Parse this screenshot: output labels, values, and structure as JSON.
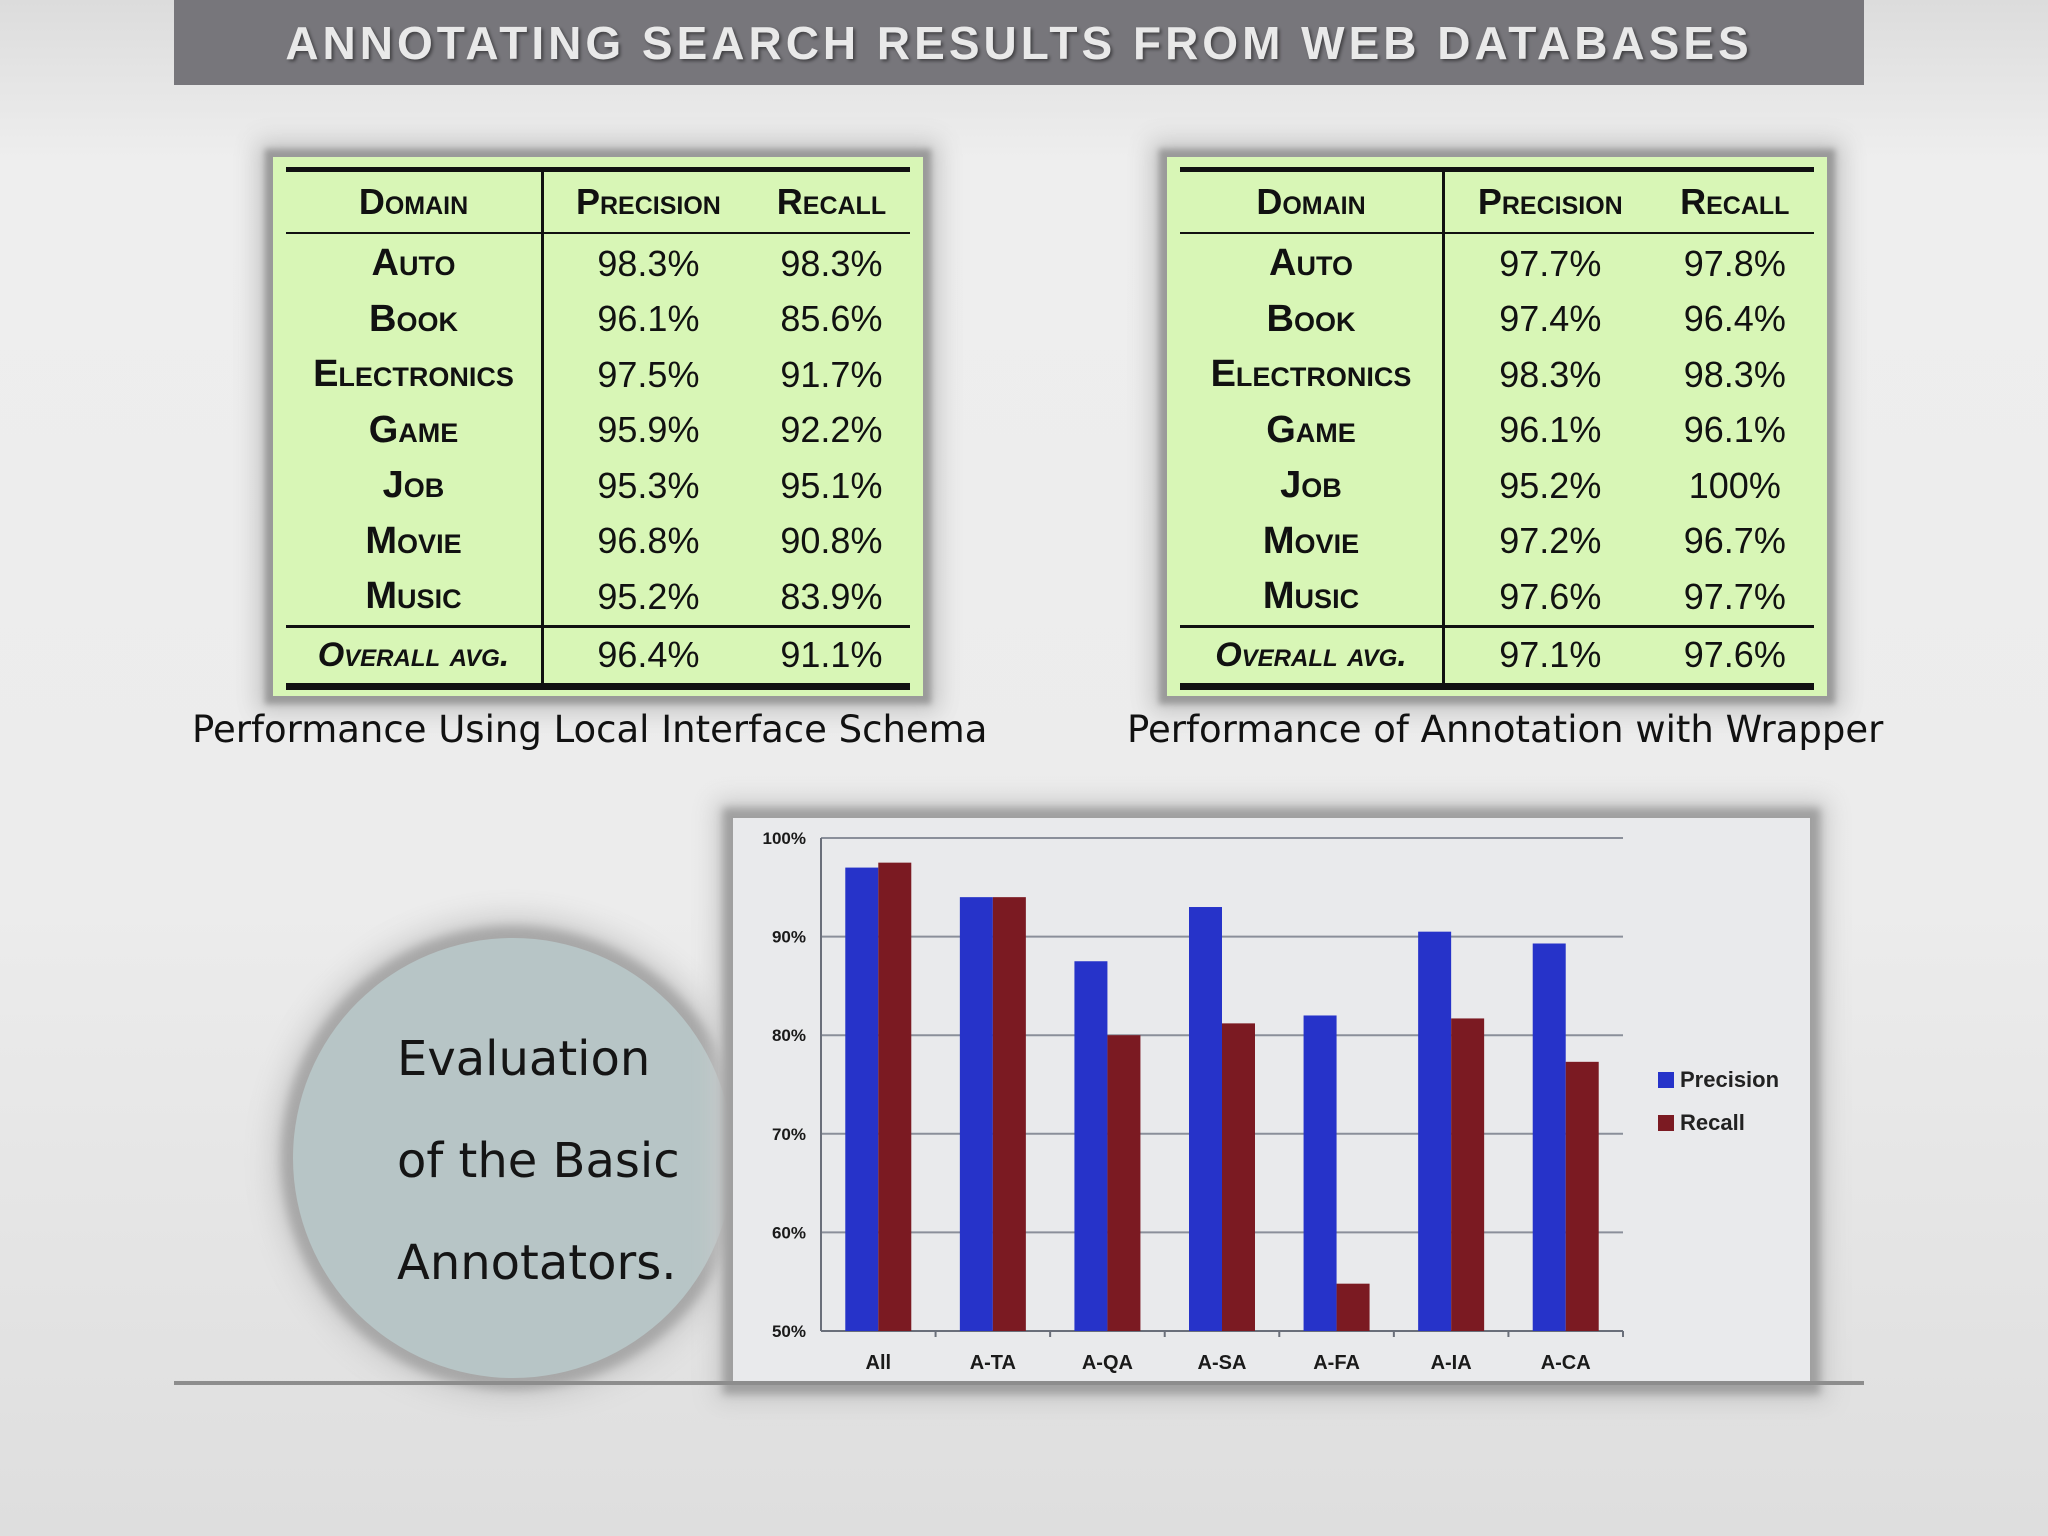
{
  "title": "ANNOTATING SEARCH RESULTS FROM WEB DATABASES",
  "table_local": {
    "headers": [
      "Domain",
      "Precision",
      "Recall"
    ],
    "rows": [
      {
        "domain": "Auto",
        "precision": "98.3%",
        "recall": "98.3%"
      },
      {
        "domain": "Book",
        "precision": "96.1%",
        "recall": "85.6%"
      },
      {
        "domain": "Electronics",
        "precision": "97.5%",
        "recall": "91.7%"
      },
      {
        "domain": "Game",
        "precision": "95.9%",
        "recall": "92.2%"
      },
      {
        "domain": "Job",
        "precision": "95.3%",
        "recall": "95.1%"
      },
      {
        "domain": "Movie",
        "precision": "96.8%",
        "recall": "90.8%"
      },
      {
        "domain": "Music",
        "precision": "95.2%",
        "recall": "83.9%"
      }
    ],
    "footer": {
      "domain": "Overall avg.",
      "precision": "96.4%",
      "recall": "91.1%"
    },
    "caption": "Performance Using Local Interface Schema"
  },
  "table_wrapper": {
    "headers": [
      "Domain",
      "Precision",
      "Recall"
    ],
    "rows": [
      {
        "domain": "Auto",
        "precision": "97.7%",
        "recall": "97.8%"
      },
      {
        "domain": "Book",
        "precision": "97.4%",
        "recall": "96.4%"
      },
      {
        "domain": "Electronics",
        "precision": "98.3%",
        "recall": "98.3%"
      },
      {
        "domain": "Game",
        "precision": "96.1%",
        "recall": "96.1%"
      },
      {
        "domain": "Job",
        "precision": "95.2%",
        "recall": "100%"
      },
      {
        "domain": "Movie",
        "precision": "97.2%",
        "recall": "96.7%"
      },
      {
        "domain": "Music",
        "precision": "97.6%",
        "recall": "97.7%"
      }
    ],
    "footer": {
      "domain": "Overall avg.",
      "precision": "97.1%",
      "recall": "97.6%"
    },
    "caption": "Performance of Annotation with Wrapper"
  },
  "circle_text": [
    "Evaluation",
    "of the Basic",
    "Annotators."
  ],
  "chart_data": {
    "type": "bar",
    "categories": [
      "All",
      "A-TA",
      "A-QA",
      "A-SA",
      "A-FA",
      "A-IA",
      "A-CA"
    ],
    "series": [
      {
        "name": "Precision",
        "color": "#2633c9",
        "values": [
          97.0,
          94.0,
          87.5,
          93.0,
          82.0,
          90.5,
          89.3
        ]
      },
      {
        "name": "Recall",
        "color": "#7b1a22",
        "values": [
          97.5,
          94.0,
          80.0,
          81.2,
          54.8,
          81.7,
          77.3
        ]
      }
    ],
    "ylim": [
      50,
      100
    ],
    "yticks": [
      50,
      60,
      70,
      80,
      90,
      100
    ],
    "ytick_labels": [
      "50%",
      "60%",
      "70%",
      "80%",
      "90%",
      "100%"
    ],
    "grid": true,
    "legend": "right",
    "title": "",
    "xlabel": "",
    "ylabel": ""
  }
}
